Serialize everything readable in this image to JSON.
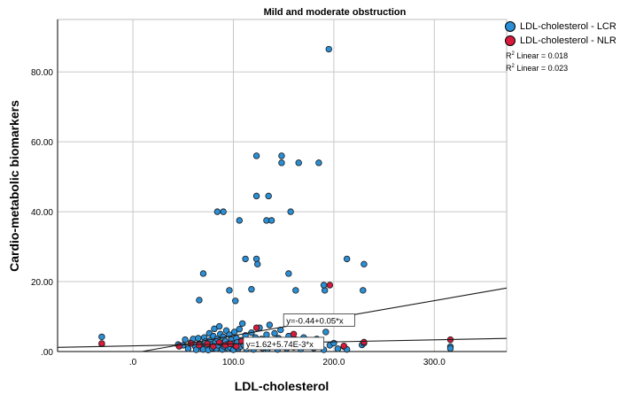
{
  "chart_data": {
    "type": "scatter",
    "title": "Mild and moderate obstruction",
    "xlabel": "LDL-cholesterol",
    "ylabel": "Cardio-metabolic biomarkers",
    "xlim": [
      -75,
      372
    ],
    "ylim": [
      0,
      95
    ],
    "x_ticks": [
      {
        "value": 0,
        "label": ".0"
      },
      {
        "value": 100,
        "label": "100.0"
      },
      {
        "value": 200,
        "label": "200.0"
      },
      {
        "value": 300,
        "label": "300.0"
      }
    ],
    "y_ticks": [
      {
        "value": 0,
        "label": ".00"
      },
      {
        "value": 20,
        "label": "20.00"
      },
      {
        "value": 40,
        "label": "40.00"
      },
      {
        "value": 60,
        "label": "60.00"
      },
      {
        "value": 80,
        "label": "80.00"
      }
    ],
    "grid": true,
    "legend_position": "top-right",
    "series": [
      {
        "name": "LDL-cholesterol - LCR",
        "color": "#2b8fd6",
        "fit_label": "y=-0.44+0.05*x",
        "fit_intercept": -0.44,
        "fit_slope": 0.05,
        "r2_label": "Linear = 0.018",
        "points": [
          [
            195,
            86.5
          ],
          [
            123,
            56
          ],
          [
            148,
            56
          ],
          [
            148,
            54
          ],
          [
            165,
            54
          ],
          [
            185,
            54
          ],
          [
            123,
            44.5
          ],
          [
            135,
            44.5
          ],
          [
            84,
            40
          ],
          [
            90,
            40
          ],
          [
            157,
            40
          ],
          [
            106,
            37.5
          ],
          [
            133,
            37.5
          ],
          [
            138,
            37.5
          ],
          [
            112,
            26.5
          ],
          [
            123,
            26.5
          ],
          [
            213,
            26.5
          ],
          [
            124,
            25
          ],
          [
            230,
            25
          ],
          [
            70,
            22.3
          ],
          [
            155,
            22.3
          ],
          [
            118,
            17.8
          ],
          [
            162,
            17.5
          ],
          [
            191,
            17.5
          ],
          [
            229,
            17.5
          ],
          [
            96,
            17.5
          ],
          [
            190,
            19
          ],
          [
            66,
            14.7
          ],
          [
            102,
            14.5
          ],
          [
            -31,
            4.2
          ],
          [
            -31,
            2.2
          ],
          [
            45,
            2
          ],
          [
            50,
            1.8
          ],
          [
            52,
            3.4
          ],
          [
            55,
            0.8
          ],
          [
            58,
            2.6
          ],
          [
            60,
            3.6
          ],
          [
            62,
            1.5
          ],
          [
            63,
            0.5
          ],
          [
            65,
            3.8
          ],
          [
            66,
            2.2
          ],
          [
            68,
            1.2
          ],
          [
            70,
            0.6
          ],
          [
            71,
            4
          ],
          [
            72,
            2.8
          ],
          [
            74,
            1.6
          ],
          [
            75,
            0.4
          ],
          [
            76,
            5.2
          ],
          [
            77,
            3.2
          ],
          [
            78,
            2
          ],
          [
            79,
            1
          ],
          [
            80,
            4.4
          ],
          [
            81,
            6.5
          ],
          [
            82,
            2.6
          ],
          [
            83,
            0.8
          ],
          [
            84,
            3.6
          ],
          [
            85,
            1.8
          ],
          [
            86,
            7.2
          ],
          [
            87,
            5
          ],
          [
            88,
            2.4
          ],
          [
            89,
            0.6
          ],
          [
            90,
            4.2
          ],
          [
            91,
            1.4
          ],
          [
            92,
            3
          ],
          [
            93,
            6
          ],
          [
            94,
            2
          ],
          [
            95,
            0.8
          ],
          [
            96,
            4.8
          ],
          [
            97,
            1.2
          ],
          [
            98,
            3.4
          ],
          [
            99,
            2.2
          ],
          [
            100,
            0.5
          ],
          [
            101,
            5.6
          ],
          [
            102,
            1.6
          ],
          [
            103,
            3.8
          ],
          [
            104,
            2.6
          ],
          [
            105,
            0.9
          ],
          [
            106,
            6.4
          ],
          [
            107,
            1.4
          ],
          [
            108,
            3.2
          ],
          [
            109,
            8
          ],
          [
            110,
            2
          ],
          [
            112,
            4.6
          ],
          [
            113,
            0.7
          ],
          [
            115,
            3
          ],
          [
            116,
            1.8
          ],
          [
            118,
            5.4
          ],
          [
            119,
            2.4
          ],
          [
            120,
            0.6
          ],
          [
            122,
            4
          ],
          [
            123,
            1.4
          ],
          [
            125,
            2.8
          ],
          [
            126,
            6.8
          ],
          [
            128,
            3.6
          ],
          [
            129,
            1
          ],
          [
            131,
            2.2
          ],
          [
            133,
            4.8
          ],
          [
            134,
            0.8
          ],
          [
            136,
            7.6
          ],
          [
            137,
            3
          ],
          [
            139,
            1.6
          ],
          [
            141,
            5.2
          ],
          [
            142,
            2.4
          ],
          [
            144,
            0.6
          ],
          [
            145,
            3.8
          ],
          [
            147,
            6.2
          ],
          [
            149,
            1.8
          ],
          [
            151,
            3.2
          ],
          [
            153,
            0.9
          ],
          [
            155,
            4.4
          ],
          [
            157,
            2
          ],
          [
            160,
            1.2
          ],
          [
            162,
            3.4
          ],
          [
            165,
            2.6
          ],
          [
            167,
            0.7
          ],
          [
            170,
            4
          ],
          [
            173,
            1.6
          ],
          [
            176,
            2.8
          ],
          [
            180,
            1
          ],
          [
            183,
            3.6
          ],
          [
            186,
            2
          ],
          [
            190,
            0.5
          ],
          [
            192,
            5.6
          ],
          [
            196,
            1.8
          ],
          [
            200,
            2.4
          ],
          [
            204,
            0.8
          ],
          [
            210,
            1.4
          ],
          [
            213,
            0.6
          ],
          [
            228,
            1.9
          ],
          [
            230,
            2.4
          ],
          [
            316,
            1.4
          ],
          [
            316,
            0.9
          ]
        ]
      },
      {
        "name": "LDL-cholesterol - NLR",
        "color": "#d81b3c",
        "fit_label": "y=1.62+5.74E-3*x",
        "fit_intercept": 1.62,
        "fit_slope": 0.00574,
        "r2_label": "Linear = 0.023",
        "points": [
          [
            -31,
            2.3
          ],
          [
            46,
            1.5
          ],
          [
            58,
            2.3
          ],
          [
            66,
            1.8
          ],
          [
            74,
            2.2
          ],
          [
            80,
            1.5
          ],
          [
            86,
            2.6
          ],
          [
            92,
            1.8
          ],
          [
            97,
            2.2
          ],
          [
            103,
            1.5
          ],
          [
            108,
            2.9
          ],
          [
            114,
            1.8
          ],
          [
            119,
            2.4
          ],
          [
            123,
            6.8
          ],
          [
            130,
            1.6
          ],
          [
            138,
            2.6
          ],
          [
            145,
            1.9
          ],
          [
            152,
            2.3
          ],
          [
            160,
            5
          ],
          [
            170,
            1.8
          ],
          [
            184,
            2.1
          ],
          [
            196,
            19
          ],
          [
            210,
            1.6
          ],
          [
            230,
            2.7
          ],
          [
            316,
            3.4
          ]
        ]
      }
    ]
  }
}
